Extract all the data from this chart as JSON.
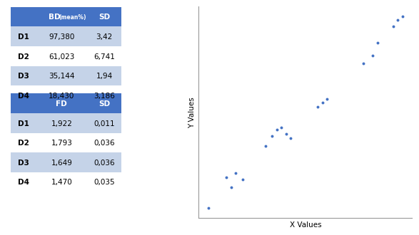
{
  "table1_header": [
    "",
    "BD (mean%)",
    "SD"
  ],
  "table1_rows": [
    [
      "D1",
      "97,380",
      "3,42"
    ],
    [
      "D2",
      "61,023",
      "6,741"
    ],
    [
      "D3",
      "35,144",
      "1,94"
    ],
    [
      "D4",
      "18,430",
      "3,186"
    ]
  ],
  "table2_header": [
    "",
    "FD",
    "SD"
  ],
  "table2_rows": [
    [
      "D1",
      "1,922",
      "0,011"
    ],
    [
      "D2",
      "1,793",
      "0,036"
    ],
    [
      "D3",
      "1,649",
      "0,036"
    ],
    [
      "D4",
      "1,470",
      "0,035"
    ]
  ],
  "header_bg": "#4472C4",
  "header_text": "#FFFFFF",
  "row_bg_light": "#C5D3E8",
  "row_bg_white": "#FFFFFF",
  "scatter_color": "#4472C4",
  "scatter_x": [
    10,
    18,
    20,
    22,
    25,
    35,
    38,
    40,
    42,
    44,
    46,
    58,
    60,
    62,
    78,
    82,
    84,
    91,
    93,
    95
  ],
  "scatter_y": [
    1.47,
    1.545,
    1.52,
    1.555,
    1.54,
    1.62,
    1.645,
    1.66,
    1.665,
    1.65,
    1.64,
    1.715,
    1.725,
    1.735,
    1.82,
    1.84,
    1.87,
    1.91,
    1.925,
    1.935
  ],
  "xlabel": "X Values",
  "ylabel": "Y Values"
}
